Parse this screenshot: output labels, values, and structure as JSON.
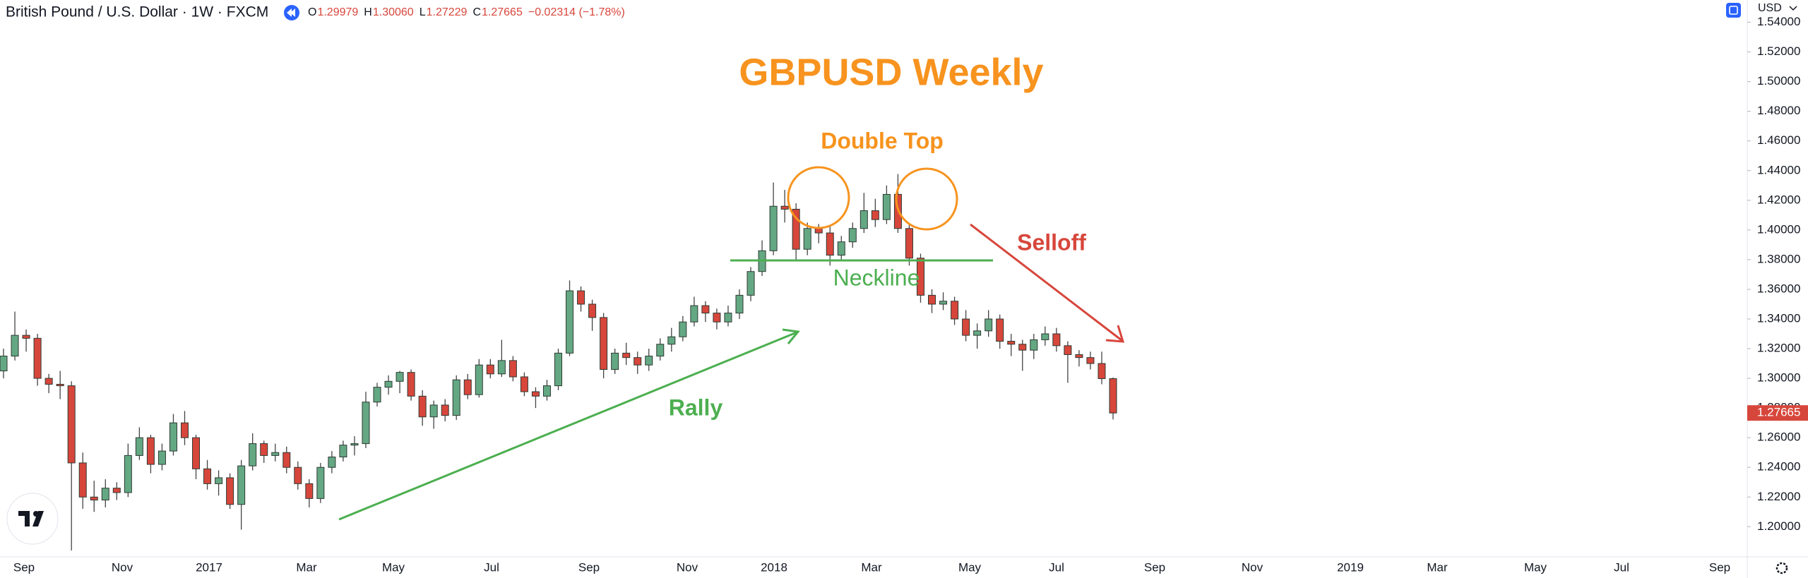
{
  "header": {
    "symbol": "British Pound / U.S. Dollar · 1W · FXCM",
    "ohlc": [
      {
        "label": "O",
        "value": "1.29979"
      },
      {
        "label": "H",
        "value": "1.30060"
      },
      {
        "label": "L",
        "value": "1.27229"
      },
      {
        "label": "C",
        "value": "1.27665"
      }
    ],
    "change": "−0.02314 (−1.78%)",
    "currency": "USD"
  },
  "chart_data": {
    "type": "candlestick",
    "title": "GBPUSD Weekly",
    "annotations": {
      "double_top": "Double Top",
      "neckline": "Neckline",
      "rally": "Rally",
      "selloff": "Selloff"
    },
    "up_color": "#64a883",
    "down_color": "#d7463b",
    "candles": [
      [
        1.305,
        1.32,
        1.3,
        1.315
      ],
      [
        1.315,
        1.345,
        1.312,
        1.329
      ],
      [
        1.329,
        1.333,
        1.318,
        1.327
      ],
      [
        1.327,
        1.33,
        1.295,
        1.3
      ],
      [
        1.3,
        1.303,
        1.29,
        1.296
      ],
      [
        1.296,
        1.305,
        1.286,
        1.295
      ],
      [
        1.295,
        1.298,
        1.184,
        1.243
      ],
      [
        1.243,
        1.25,
        1.212,
        1.22
      ],
      [
        1.22,
        1.231,
        1.21,
        1.218
      ],
      [
        1.218,
        1.232,
        1.213,
        1.226
      ],
      [
        1.226,
        1.23,
        1.218,
        1.223
      ],
      [
        1.223,
        1.256,
        1.22,
        1.248
      ],
      [
        1.248,
        1.267,
        1.245,
        1.26
      ],
      [
        1.26,
        1.262,
        1.236,
        1.242
      ],
      [
        1.242,
        1.256,
        1.238,
        1.251
      ],
      [
        1.251,
        1.276,
        1.248,
        1.27
      ],
      [
        1.27,
        1.278,
        1.255,
        1.26
      ],
      [
        1.26,
        1.262,
        1.232,
        1.239
      ],
      [
        1.239,
        1.245,
        1.225,
        1.229
      ],
      [
        1.229,
        1.238,
        1.221,
        1.233
      ],
      [
        1.233,
        1.236,
        1.212,
        1.215
      ],
      [
        1.215,
        1.245,
        1.198,
        1.241
      ],
      [
        1.241,
        1.263,
        1.238,
        1.256
      ],
      [
        1.256,
        1.258,
        1.243,
        1.248
      ],
      [
        1.248,
        1.256,
        1.244,
        1.25
      ],
      [
        1.25,
        1.254,
        1.236,
        1.24
      ],
      [
        1.24,
        1.244,
        1.225,
        1.229
      ],
      [
        1.229,
        1.232,
        1.213,
        1.219
      ],
      [
        1.219,
        1.243,
        1.216,
        1.24
      ],
      [
        1.24,
        1.251,
        1.236,
        1.247
      ],
      [
        1.247,
        1.258,
        1.244,
        1.255
      ],
      [
        1.255,
        1.261,
        1.248,
        1.256
      ],
      [
        1.256,
        1.291,
        1.253,
        1.284
      ],
      [
        1.284,
        1.297,
        1.281,
        1.294
      ],
      [
        1.294,
        1.302,
        1.289,
        1.298
      ],
      [
        1.298,
        1.305,
        1.29,
        1.304
      ],
      [
        1.304,
        1.306,
        1.285,
        1.288
      ],
      [
        1.288,
        1.292,
        1.268,
        1.274
      ],
      [
        1.274,
        1.285,
        1.266,
        1.282
      ],
      [
        1.282,
        1.286,
        1.271,
        1.275
      ],
      [
        1.275,
        1.302,
        1.272,
        1.299
      ],
      [
        1.299,
        1.303,
        1.286,
        1.289
      ],
      [
        1.289,
        1.313,
        1.287,
        1.309
      ],
      [
        1.309,
        1.313,
        1.3,
        1.303
      ],
      [
        1.303,
        1.326,
        1.301,
        1.312
      ],
      [
        1.312,
        1.315,
        1.298,
        1.301
      ],
      [
        1.301,
        1.304,
        1.288,
        1.291
      ],
      [
        1.291,
        1.294,
        1.28,
        1.288
      ],
      [
        1.288,
        1.299,
        1.285,
        1.295
      ],
      [
        1.295,
        1.32,
        1.292,
        1.317
      ],
      [
        1.317,
        1.366,
        1.315,
        1.359
      ],
      [
        1.359,
        1.362,
        1.345,
        1.35
      ],
      [
        1.35,
        1.353,
        1.332,
        1.341
      ],
      [
        1.341,
        1.344,
        1.3,
        1.306
      ],
      [
        1.306,
        1.32,
        1.303,
        1.317
      ],
      [
        1.317,
        1.324,
        1.309,
        1.314
      ],
      [
        1.314,
        1.318,
        1.303,
        1.309
      ],
      [
        1.309,
        1.32,
        1.305,
        1.315
      ],
      [
        1.315,
        1.327,
        1.312,
        1.323
      ],
      [
        1.323,
        1.334,
        1.318,
        1.328
      ],
      [
        1.328,
        1.342,
        1.325,
        1.338
      ],
      [
        1.338,
        1.355,
        1.335,
        1.349
      ],
      [
        1.349,
        1.352,
        1.338,
        1.344
      ],
      [
        1.344,
        1.347,
        1.333,
        1.338
      ],
      [
        1.338,
        1.349,
        1.335,
        1.344
      ],
      [
        1.344,
        1.36,
        1.34,
        1.356
      ],
      [
        1.356,
        1.375,
        1.352,
        1.372
      ],
      [
        1.372,
        1.393,
        1.369,
        1.386
      ],
      [
        1.386,
        1.432,
        1.383,
        1.416
      ],
      [
        1.416,
        1.427,
        1.405,
        1.414
      ],
      [
        1.414,
        1.418,
        1.379,
        1.387
      ],
      [
        1.387,
        1.405,
        1.383,
        1.401
      ],
      [
        1.401,
        1.404,
        1.391,
        1.398
      ],
      [
        1.398,
        1.403,
        1.376,
        1.383
      ],
      [
        1.383,
        1.396,
        1.379,
        1.392
      ],
      [
        1.392,
        1.405,
        1.388,
        1.401
      ],
      [
        1.401,
        1.425,
        1.398,
        1.413
      ],
      [
        1.413,
        1.421,
        1.402,
        1.407
      ],
      [
        1.407,
        1.43,
        1.404,
        1.424
      ],
      [
        1.424,
        1.4377,
        1.398,
        1.401
      ],
      [
        1.401,
        1.404,
        1.376,
        1.381
      ],
      [
        1.381,
        1.384,
        1.351,
        1.356
      ],
      [
        1.356,
        1.36,
        1.344,
        1.35
      ],
      [
        1.35,
        1.358,
        1.346,
        1.352
      ],
      [
        1.352,
        1.355,
        1.336,
        1.34
      ],
      [
        1.34,
        1.346,
        1.325,
        1.329
      ],
      [
        1.329,
        1.337,
        1.32,
        1.332
      ],
      [
        1.332,
        1.346,
        1.328,
        1.34
      ],
      [
        1.34,
        1.343,
        1.32,
        1.325
      ],
      [
        1.325,
        1.33,
        1.315,
        1.323
      ],
      [
        1.323,
        1.326,
        1.305,
        1.319
      ],
      [
        1.319,
        1.33,
        1.313,
        1.326
      ],
      [
        1.326,
        1.335,
        1.322,
        1.33
      ],
      [
        1.33,
        1.334,
        1.318,
        1.322
      ],
      [
        1.322,
        1.325,
        1.297,
        1.316
      ],
      [
        1.316,
        1.319,
        1.308,
        1.314
      ],
      [
        1.314,
        1.318,
        1.306,
        1.31
      ],
      [
        1.31,
        1.318,
        1.296,
        1.2998
      ],
      [
        1.29979,
        1.3006,
        1.27229,
        1.27665
      ]
    ],
    "last_price": {
      "value": 1.27665,
      "label": "1.27665"
    },
    "ylim": [
      1.1797,
      1.555
    ],
    "yticks": [
      {
        "value": 1.2,
        "label": "1.20000"
      },
      {
        "value": 1.22,
        "label": "1.22000"
      },
      {
        "value": 1.24,
        "label": "1.24000"
      },
      {
        "value": 1.26,
        "label": "1.26000"
      },
      {
        "value": 1.28,
        "label": "1.28000"
      },
      {
        "value": 1.3,
        "label": "1.30000"
      },
      {
        "value": 1.32,
        "label": "1.32000"
      },
      {
        "value": 1.34,
        "label": "1.34000"
      },
      {
        "value": 1.36,
        "label": "1.36000"
      },
      {
        "value": 1.38,
        "label": "1.38000"
      },
      {
        "value": 1.4,
        "label": "1.40000"
      },
      {
        "value": 1.42,
        "label": "1.42000"
      },
      {
        "value": 1.44,
        "label": "1.44000"
      },
      {
        "value": 1.46,
        "label": "1.46000"
      },
      {
        "value": 1.48,
        "label": "1.48000"
      },
      {
        "value": 1.5,
        "label": "1.50000"
      },
      {
        "value": 1.52,
        "label": "1.52000"
      },
      {
        "value": 1.54,
        "label": "1.54000"
      }
    ],
    "xtick_labels": [
      "Sep",
      "Nov",
      "2017",
      "Mar",
      "May",
      "Jul",
      "Sep",
      "Nov",
      "2018",
      "Mar",
      "May",
      "Jul",
      "Sep",
      "Nov",
      "2019",
      "Mar",
      "May",
      "Jul",
      "Sep"
    ]
  }
}
